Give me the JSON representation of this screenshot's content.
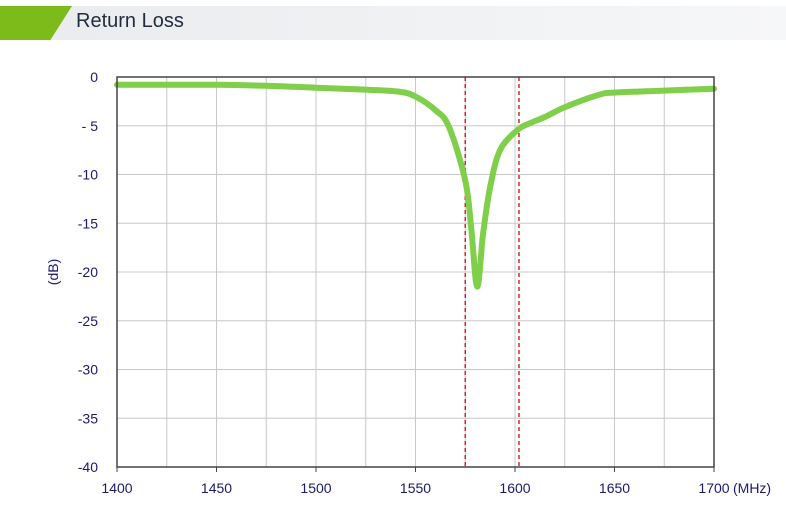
{
  "header": {
    "title": "Return Loss"
  },
  "chart_data": {
    "type": "line",
    "title": "",
    "xlabel": "(MHz)",
    "ylabel": "(dB)",
    "xlim": [
      1400,
      1700
    ],
    "ylim": [
      -40,
      0
    ],
    "xticks": [
      1400,
      1450,
      1500,
      1550,
      1600,
      1650,
      1700
    ],
    "yticks": [
      0,
      -5,
      -10,
      -15,
      -20,
      -25,
      -30,
      -35,
      -40
    ],
    "ytick_labels": [
      "0",
      "- 5",
      "-10",
      "-15",
      "-20",
      "-25",
      "-30",
      "-35",
      "-40"
    ],
    "grid": true,
    "series": [
      {
        "color": "#7fcf4a",
        "x": [
          1400,
          1425,
          1450,
          1475,
          1500,
          1525,
          1541.7,
          1550,
          1560,
          1566.8,
          1575,
          1578,
          1581,
          1584,
          1587.5,
          1592.5,
          1601.5,
          1608,
          1615,
          1625,
          1642.6,
          1650,
          1675,
          1700
        ],
        "y": [
          -0.8,
          -0.8,
          -0.8,
          -0.9,
          -1.1,
          -1.3,
          -1.5,
          -2.0,
          -3.4,
          -5.1,
          -10.6,
          -15.5,
          -21.5,
          -16,
          -11.3,
          -7.5,
          -5.4,
          -4.7,
          -4.1,
          -3.1,
          -1.8,
          -1.6,
          -1.4,
          -1.2
        ]
      }
    ],
    "markers": [
      {
        "x": 1575,
        "color": "#d9262b",
        "style": "dashed"
      },
      {
        "x": 1602,
        "color": "#d9262b",
        "style": "dashed"
      }
    ]
  }
}
